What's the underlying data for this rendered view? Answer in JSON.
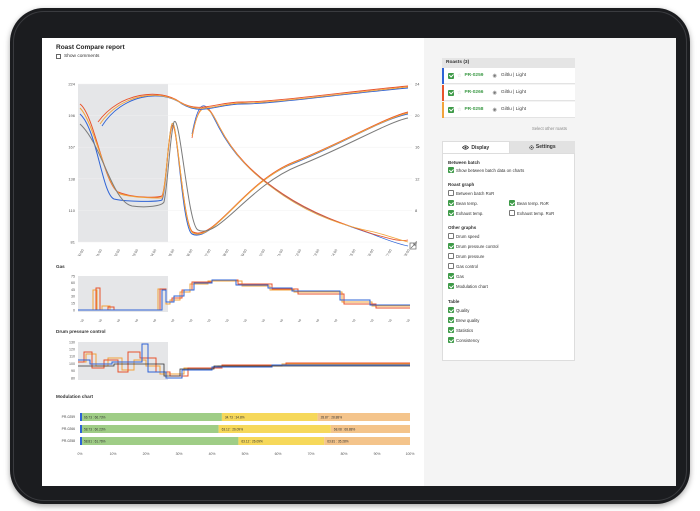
{
  "report": {
    "title": "Roast Compare report",
    "show_comments_label": "Show comments"
  },
  "main_chart": {
    "left_ticks": [
      "224",
      "196",
      "167",
      "138",
      "110",
      "81"
    ],
    "right_ticks": [
      "24",
      "20",
      "16",
      "12",
      "8",
      "4"
    ],
    "x_ticks": [
      "00:00",
      "01:00",
      "02:00",
      "03:00",
      "04:00",
      "05:00",
      "06:00",
      "07:00",
      "08:00",
      "09:00",
      "10:00",
      "11:00",
      "12:00",
      "13:00",
      "14:00",
      "15:00",
      "16:00",
      "17:00",
      "18:00"
    ],
    "corner_icon": "expand-icon"
  },
  "gas": {
    "label": "Gas",
    "ticks": [
      "75",
      "60",
      "45",
      "30",
      "15",
      "0"
    ]
  },
  "drum": {
    "label": "Drum pressure control",
    "ticks": [
      "130",
      "120",
      "110",
      "100",
      "90",
      "80"
    ]
  },
  "modulation": {
    "label": "Modulation chart",
    "rows": [
      {
        "label": "PR-0259",
        "seg1": "66.73 : 66.73%",
        "seg2": "34.73 : 34.8%",
        "seg3": "28.87 : 28.88%"
      },
      {
        "label": "PR-0266",
        "seg1": "58.73 : 60.23%",
        "seg2": "63.12 : 26.09%",
        "seg3": "68.08 : 68.88%"
      },
      {
        "label": "PR-0258",
        "seg1": "58.81 : 61.76%",
        "seg2": "63.12 : 26.09%",
        "seg3": "63.81 : 35.28%"
      }
    ],
    "x_ticks": [
      "0%",
      "10%",
      "20%",
      "30%",
      "40%",
      "50%",
      "60%",
      "70%",
      "80%",
      "90%",
      "100%"
    ],
    "colors": {
      "seg1": "#9fcd86",
      "seg2": "#f6d85a",
      "seg3": "#f4c48b"
    }
  },
  "roasts": {
    "header": "Roasts (3)",
    "items": [
      {
        "id": "PR-0259",
        "name": "Giltlu | Light",
        "color": "#2e63d6"
      },
      {
        "id": "PR-0266",
        "name": "Giltlu | Light",
        "color": "#e8532b"
      },
      {
        "id": "PR-0258",
        "name": "Giltlu | Light",
        "color": "#f2a33a"
      }
    ],
    "select_other": "Select other roasts"
  },
  "tabs": [
    {
      "label": "Display",
      "icon": "eye-icon"
    },
    {
      "label": "Settings",
      "icon": "gear-icon"
    }
  ],
  "display": {
    "between_batch": {
      "title": "Between batch",
      "items": [
        {
          "label": "Show between batch data on charts",
          "checked": true
        }
      ]
    },
    "roast_graph": {
      "title": "Roast graph",
      "items": [
        {
          "label": "Between batch RoR",
          "checked": false
        },
        {
          "label": "Bean temp.",
          "checked": true
        },
        {
          "label": "Bean temp. RoR",
          "checked": true
        },
        {
          "label": "Exhaust temp.",
          "checked": true
        },
        {
          "label": "Exhaust temp. RoR",
          "checked": false
        }
      ]
    },
    "other_graphs": {
      "title": "Other graphs",
      "items": [
        {
          "label": "Drum speed",
          "checked": false
        },
        {
          "label": "Drum pressure control",
          "checked": true
        },
        {
          "label": "Drum pressure",
          "checked": false
        },
        {
          "label": "Gas control",
          "checked": false
        },
        {
          "label": "Gas",
          "checked": true
        },
        {
          "label": "Modulation chart",
          "checked": true
        }
      ]
    },
    "table": {
      "title": "Table",
      "items": [
        {
          "label": "Quality",
          "checked": true
        },
        {
          "label": "Brew quality",
          "checked": true
        },
        {
          "label": "Statistics",
          "checked": true
        },
        {
          "label": "Consistency",
          "checked": true
        }
      ]
    }
  }
}
